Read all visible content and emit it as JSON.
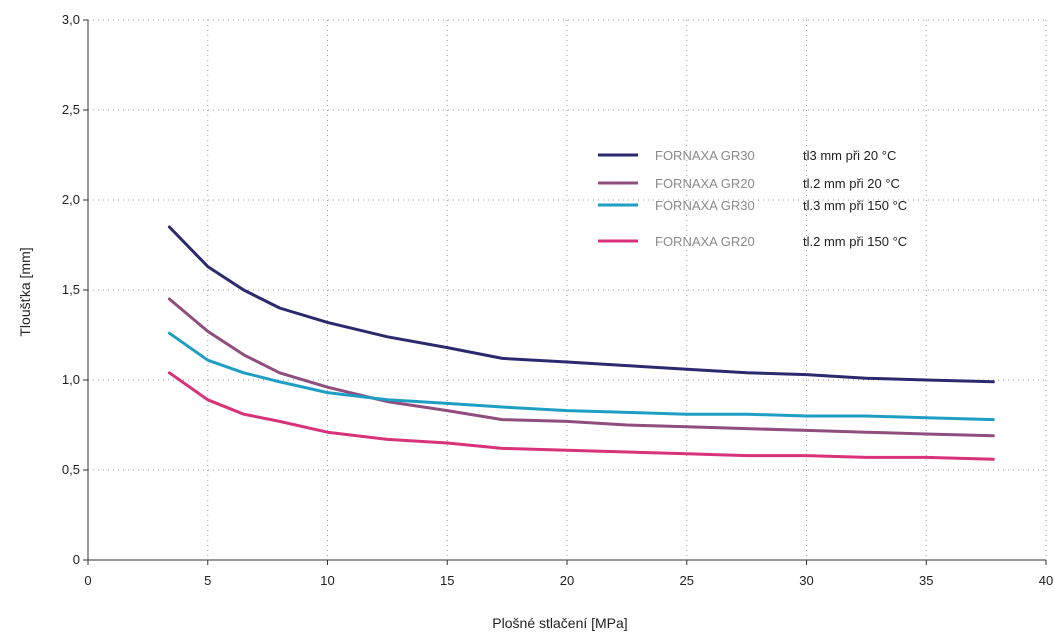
{
  "chart_data": {
    "type": "line",
    "title": "",
    "xlabel": "Plošné stlačení [MPa]",
    "ylabel": "Tloušťka [mm]",
    "xlim": [
      0,
      40
    ],
    "ylim": [
      0,
      3.0
    ],
    "x_ticks": [
      "0",
      "5",
      "10",
      "15",
      "20",
      "25",
      "30",
      "35",
      "40"
    ],
    "y_ticks": [
      "0",
      "0,5",
      "1,0",
      "1,5",
      "2,0",
      "2,5",
      "3,0"
    ],
    "grid": "dotted",
    "legend_position": "right",
    "series": [
      {
        "name": "FORNAXA GR30",
        "desc": "tl3 mm při 20 °C",
        "color": "#2b2a6e",
        "points": [
          [
            3.4,
            1.85
          ],
          [
            5,
            1.63
          ],
          [
            6.5,
            1.5
          ],
          [
            8,
            1.4
          ],
          [
            10,
            1.32
          ],
          [
            12.5,
            1.24
          ],
          [
            15,
            1.18
          ],
          [
            17.3,
            1.12
          ],
          [
            20,
            1.1
          ],
          [
            22.5,
            1.08
          ],
          [
            25,
            1.06
          ],
          [
            27.5,
            1.04
          ],
          [
            30,
            1.03
          ],
          [
            32.5,
            1.01
          ],
          [
            35,
            1.0
          ],
          [
            37.8,
            0.99
          ]
        ]
      },
      {
        "name": "FORNAXA GR20",
        "desc": "tl.2 mm při 20 °C",
        "color": "#8f4e7e",
        "points": [
          [
            3.4,
            1.45
          ],
          [
            5,
            1.27
          ],
          [
            6.5,
            1.14
          ],
          [
            8,
            1.04
          ],
          [
            10,
            0.96
          ],
          [
            12.5,
            0.88
          ],
          [
            15,
            0.83
          ],
          [
            17.3,
            0.78
          ],
          [
            20,
            0.77
          ],
          [
            22.5,
            0.75
          ],
          [
            25,
            0.74
          ],
          [
            27.5,
            0.73
          ],
          [
            30,
            0.72
          ],
          [
            32.5,
            0.71
          ],
          [
            35,
            0.7
          ],
          [
            37.8,
            0.69
          ]
        ]
      },
      {
        "name": "FORNAXA GR30",
        "desc": "tl.3 mm při 150 °C",
        "color": "#1f9ec4",
        "points": [
          [
            3.4,
            1.26
          ],
          [
            5,
            1.11
          ],
          [
            6.5,
            1.04
          ],
          [
            8,
            0.99
          ],
          [
            10,
            0.93
          ],
          [
            12.5,
            0.89
          ],
          [
            15,
            0.87
          ],
          [
            17.3,
            0.85
          ],
          [
            20,
            0.83
          ],
          [
            22.5,
            0.82
          ],
          [
            25,
            0.81
          ],
          [
            27.5,
            0.81
          ],
          [
            30,
            0.8
          ],
          [
            32.5,
            0.8
          ],
          [
            35,
            0.79
          ],
          [
            37.8,
            0.78
          ]
        ]
      },
      {
        "name": "FORNAXA GR20",
        "desc": "tl.2 mm při 150 °C",
        "color": "#d8327a",
        "points": [
          [
            3.4,
            1.04
          ],
          [
            5,
            0.89
          ],
          [
            6.5,
            0.81
          ],
          [
            8,
            0.77
          ],
          [
            10,
            0.71
          ],
          [
            12.5,
            0.67
          ],
          [
            15,
            0.65
          ],
          [
            17.3,
            0.62
          ],
          [
            20,
            0.61
          ],
          [
            22.5,
            0.6
          ],
          [
            25,
            0.59
          ],
          [
            27.5,
            0.58
          ],
          [
            30,
            0.58
          ],
          [
            32.5,
            0.57
          ],
          [
            35,
            0.57
          ],
          [
            37.8,
            0.56
          ]
        ]
      }
    ]
  }
}
